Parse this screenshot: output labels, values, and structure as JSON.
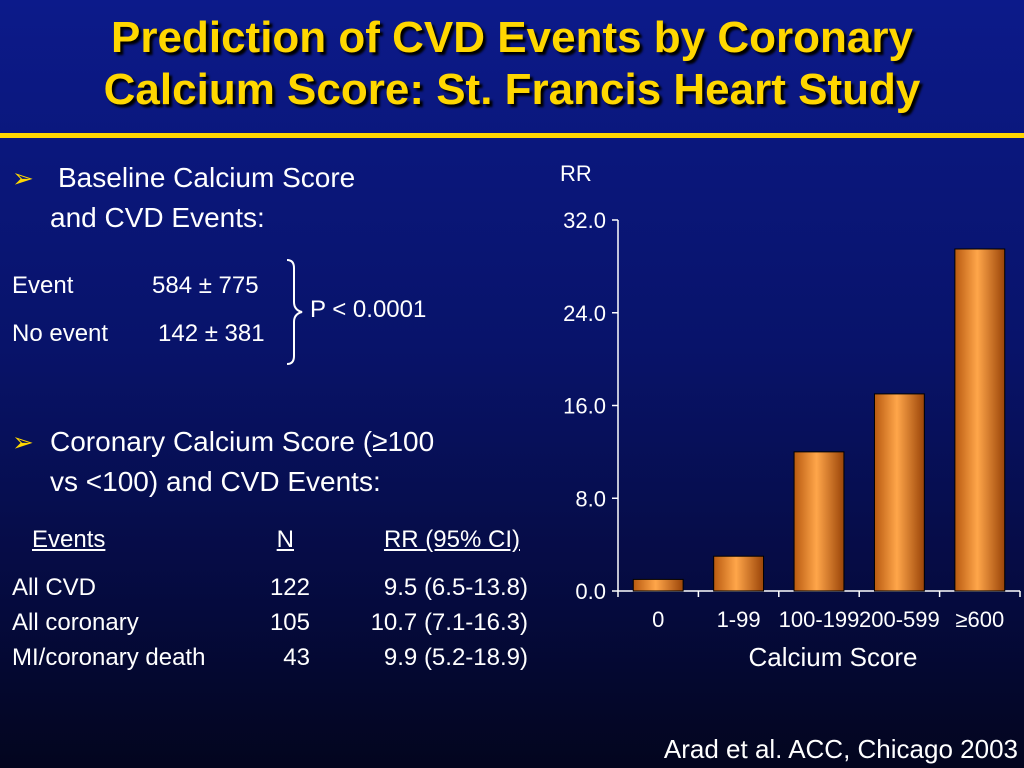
{
  "title": {
    "line1": "Prediction of CVD Events by Coronary",
    "line2": "Calcium Score: St. Francis Heart Study"
  },
  "colors": {
    "accent": "#ffd700",
    "bar": "#f08a20",
    "background": "#0a168a"
  },
  "icons": {
    "bullet": "arrow-bullet-icon",
    "brace": "right-brace-icon"
  },
  "bullet1": {
    "line1": "Baseline Calcium Score",
    "line2": "and CVD Events:"
  },
  "baseline": {
    "rows": [
      {
        "label": "Event",
        "value": "584 ± 775"
      },
      {
        "label": "No event",
        "value": "142 ± 381"
      }
    ],
    "p_value": "P < 0.0001"
  },
  "bullet2": {
    "line1": "Coronary Calcium Score (≥100",
    "line2": "vs <100) and CVD Events:"
  },
  "events_table": {
    "headers": [
      "Events",
      "N",
      "RR (95% CI)"
    ],
    "rows": [
      [
        "All CVD",
        "122",
        "9.5 (6.5-13.8)"
      ],
      [
        "All coronary",
        "105",
        "10.7 (7.1-16.3)"
      ],
      [
        "MI/coronary death",
        "43",
        "9.9 (5.2-18.9)"
      ]
    ]
  },
  "chart_data": {
    "type": "bar",
    "title": "",
    "ylabel": "RR",
    "xlabel": "Calcium Score",
    "categories": [
      "0",
      "1-99",
      "100-199",
      "200-599",
      "≥600"
    ],
    "values": [
      1.0,
      3.0,
      12.0,
      17.0,
      29.5
    ],
    "ylim": [
      0,
      32
    ],
    "yticks": [
      "0.0",
      "8.0",
      "16.0",
      "24.0",
      "32.0"
    ],
    "grid": false,
    "legend": "none"
  },
  "citation": "Arad et al. ACC, Chicago 2003"
}
